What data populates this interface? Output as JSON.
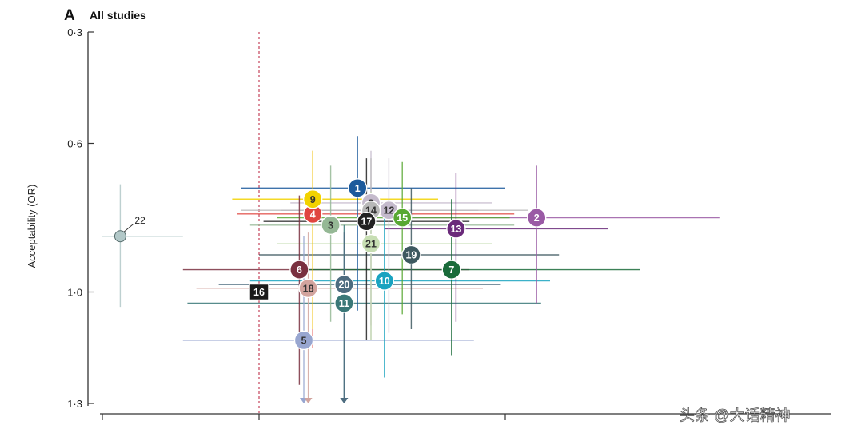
{
  "chart_data": {
    "type": "scatter",
    "panel_letter": "A",
    "title": "All studies",
    "ylabel": "Acceptability (OR)",
    "xlabel": "",
    "ylim": [
      0.3,
      1.3
    ],
    "y_axis_inverted": true,
    "xlim": [
      0,
      1
    ],
    "y_ticks": [
      "0·3",
      "0·6",
      "1·0",
      "1·3"
    ],
    "y_tick_values": [
      0.3,
      0.6,
      1.0,
      1.3
    ],
    "x_tick_values": [
      0.0,
      0.35,
      0.9
    ],
    "reference_lines": {
      "x": 0.35,
      "y": 1.0
    },
    "watermark": "头条 @大话精神",
    "points": [
      {
        "id": "1",
        "x": 0.57,
        "y": 0.72,
        "x_ci": [
          0.31,
          0.9
        ],
        "y_ci": [
          0.58,
          1.05
        ],
        "color": "#1c5a9c",
        "text": "#ffffff",
        "shape": "circle"
      },
      {
        "id": "2",
        "x": 0.97,
        "y": 0.8,
        "x_ci": [
          0.63,
          1.38
        ],
        "y_ci": [
          0.66,
          1.03
        ],
        "color": "#9a5aa5",
        "text": "#ffffff",
        "shape": "circle"
      },
      {
        "id": "3",
        "x": 0.51,
        "y": 0.82,
        "x_ci": [
          0.33,
          0.92
        ],
        "y_ci": [
          0.66,
          1.08
        ],
        "color": "#95b895",
        "text": "#333333",
        "shape": "circle"
      },
      {
        "id": "4",
        "x": 0.47,
        "y": 0.79,
        "x_ci": [
          0.3,
          0.92
        ],
        "y_ci": [
          0.62,
          1.15
        ],
        "color": "#e04540",
        "text": "#ffffff",
        "shape": "circle"
      },
      {
        "id": "5",
        "x": 0.45,
        "y": 1.13,
        "x_ci": [
          0.18,
          0.83
        ],
        "y_ci": [
          0.85,
          1.3
        ],
        "color": "#98a6d0",
        "text": "#333333",
        "shape": "circle"
      },
      {
        "id": "6",
        "x": 0.44,
        "y": 0.94,
        "x_ci": [
          0.18,
          0.82
        ],
        "y_ci": [
          0.74,
          1.25
        ],
        "color": "#7a3040",
        "text": "#ffffff",
        "shape": "circle"
      },
      {
        "id": "7",
        "x": 0.78,
        "y": 0.94,
        "x_ci": [
          0.45,
          1.2
        ],
        "y_ci": [
          0.75,
          1.17
        ],
        "color": "#1a6b3a",
        "text": "#ffffff",
        "shape": "circle"
      },
      {
        "id": "8",
        "x": 0.6,
        "y": 0.76,
        "x_ci": [
          0.42,
          0.87
        ],
        "y_ci": [
          0.62,
          1.09
        ],
        "color": "#c4bacc",
        "text": "#333333",
        "shape": "circle"
      },
      {
        "id": "9",
        "x": 0.47,
        "y": 0.75,
        "x_ci": [
          0.29,
          0.75
        ],
        "y_ci": [
          0.62,
          1.1
        ],
        "color": "#f2d200",
        "text": "#333333",
        "shape": "circle"
      },
      {
        "id": "10",
        "x": 0.63,
        "y": 0.97,
        "x_ci": [
          0.33,
          1.0
        ],
        "y_ci": [
          0.8,
          1.23
        ],
        "color": "#1aa3c0",
        "text": "#ffffff",
        "shape": "circle"
      },
      {
        "id": "11",
        "x": 0.54,
        "y": 1.03,
        "x_ci": [
          0.19,
          0.98
        ],
        "y_ci": [
          0.82,
          1.3
        ],
        "color": "#3a7878",
        "text": "#ffffff",
        "shape": "circle"
      },
      {
        "id": "12",
        "x": 0.64,
        "y": 0.78,
        "x_ci": [
          0.4,
          0.84
        ],
        "y_ci": [
          0.64,
          1.11
        ],
        "color": "#c4bacc",
        "text": "#333333",
        "shape": "circle"
      },
      {
        "id": "13",
        "x": 0.79,
        "y": 0.83,
        "x_ci": [
          0.63,
          1.13
        ],
        "y_ci": [
          0.68,
          1.08
        ],
        "color": "#6a2a7a",
        "text": "#ffffff",
        "shape": "circle"
      },
      {
        "id": "14",
        "x": 0.6,
        "y": 0.78,
        "x_ci": [
          0.31,
          0.95
        ],
        "y_ci": [
          0.64,
          1.13
        ],
        "color": "#b8b8b8",
        "text": "#333333",
        "shape": "circle"
      },
      {
        "id": "15",
        "x": 0.67,
        "y": 0.8,
        "x_ci": [
          0.39,
          0.91
        ],
        "y_ci": [
          0.65,
          1.06
        ],
        "color": "#58a832",
        "text": "#ffffff",
        "shape": "circle"
      },
      {
        "id": "16",
        "x": 0.35,
        "y": 1.0,
        "x_ci": [
          0.35,
          0.35
        ],
        "y_ci": [
          1.0,
          1.0
        ],
        "color": "#1a1a1a",
        "text": "#ffffff",
        "shape": "square"
      },
      {
        "id": "17",
        "x": 0.59,
        "y": 0.81,
        "x_ci": [
          0.36,
          0.82
        ],
        "y_ci": [
          0.64,
          1.13
        ],
        "color": "#222222",
        "text": "#ffffff",
        "shape": "circle"
      },
      {
        "id": "18",
        "x": 0.46,
        "y": 0.99,
        "x_ci": [
          0.21,
          0.85
        ],
        "y_ci": [
          0.84,
          1.3
        ],
        "color": "#d2a49e",
        "text": "#333333",
        "shape": "circle"
      },
      {
        "id": "19",
        "x": 0.69,
        "y": 0.9,
        "x_ci": [
          0.35,
          1.02
        ],
        "y_ci": [
          0.72,
          1.1
        ],
        "color": "#3e5960",
        "text": "#ffffff",
        "shape": "circle"
      },
      {
        "id": "20",
        "x": 0.54,
        "y": 0.98,
        "x_ci": [
          0.26,
          0.89
        ],
        "y_ci": [
          0.84,
          1.3
        ],
        "color": "#4e6c80",
        "text": "#ffffff",
        "shape": "circle"
      },
      {
        "id": "21",
        "x": 0.6,
        "y": 0.87,
        "x_ci": [
          0.39,
          0.87
        ],
        "y_ci": [
          0.73,
          1.13
        ],
        "color": "#c7deb3",
        "text": "#333333",
        "shape": "circle"
      },
      {
        "id": "22",
        "x": 0.04,
        "y": 0.85,
        "x_ci": [
          0.0,
          0.18
        ],
        "y_ci": [
          0.71,
          1.04
        ],
        "color": "#b2c8c8",
        "text": "#333333",
        "shape": "small"
      }
    ]
  }
}
